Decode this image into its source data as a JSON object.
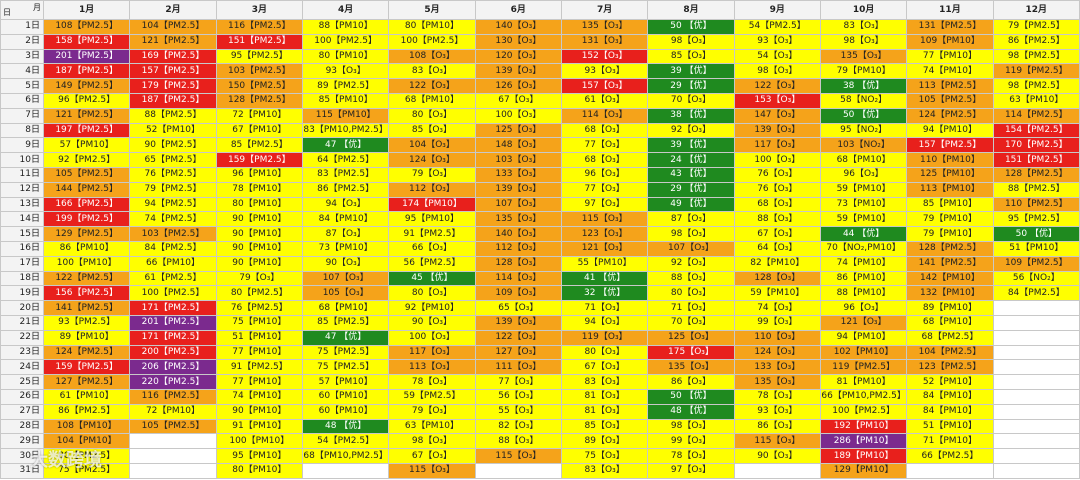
{
  "corner": {
    "col": "月",
    "row": "日"
  },
  "columns": [
    "1月",
    "2月",
    "3月",
    "4月",
    "5月",
    "6月",
    "7月",
    "8月",
    "9月",
    "10月",
    "11月",
    "12月"
  ],
  "rows": [
    {
      "day": "1日",
      "cells": [
        "108【PM2.5】",
        "104【PM2.5】",
        "116【PM2.5】",
        "88【PM10】",
        "80【PM10】",
        "140【O₃】",
        "135【O₃】",
        "50 【优】",
        "54【PM2.5】",
        "83【O₃】",
        "131【PM2.5】",
        "79【PM2.5】"
      ]
    },
    {
      "day": "2日",
      "cells": [
        "158【PM2.5】",
        "121【PM2.5】",
        "151【PM2.5】",
        "100【PM2.5】",
        "100【PM2.5】",
        "130【O₃】",
        "131【O₃】",
        "98【O₃】",
        "93【O₃】",
        "98【O₃】",
        "109【PM10】",
        "86【PM2.5】"
      ]
    },
    {
      "day": "3日",
      "cells": [
        "201【PM2.5】",
        "169【PM2.5】",
        "95【PM2.5】",
        "80【PM10】",
        "108【O₃】",
        "120【O₃】",
        "152【O₃】",
        "85【O₃】",
        "54【O₃】",
        "135【O₃】",
        "77【PM10】",
        "98【PM2.5】"
      ]
    },
    {
      "day": "4日",
      "cells": [
        "187【PM2.5】",
        "157【PM2.5】",
        "103【PM2.5】",
        "93【O₃】",
        "83【O₃】",
        "139【O₃】",
        "93【O₃】",
        "39 【优】",
        "98【O₃】",
        "79【PM10】",
        "74【PM10】",
        "119【PM2.5】"
      ]
    },
    {
      "day": "5日",
      "cells": [
        "149【PM2.5】",
        "179【PM2.5】",
        "150【PM2.5】",
        "89【PM2.5】",
        "122【O₃】",
        "126【O₃】",
        "157【O₃】",
        "29 【优】",
        "122【O₃】",
        "38 【优】",
        "113【PM2.5】",
        "98【PM2.5】"
      ]
    },
    {
      "day": "6日",
      "cells": [
        "96【PM2.5】",
        "187【PM2.5】",
        "128【PM2.5】",
        "85【PM10】",
        "68【PM10】",
        "67【O₃】",
        "61【O₃】",
        "70【O₃】",
        "153【O₃】",
        "58【NO₂】",
        "105【PM2.5】",
        "63【PM10】"
      ]
    },
    {
      "day": "7日",
      "cells": [
        "121【PM2.5】",
        "88【PM2.5】",
        "72【PM10】",
        "115【PM10】",
        "80【O₃】",
        "100【O₃】",
        "114【O₃】",
        "38 【优】",
        "147【O₃】",
        "50 【优】",
        "124【PM2.5】",
        "114【PM2.5】"
      ]
    },
    {
      "day": "8日",
      "cells": [
        "197【PM2.5】",
        "52【PM10】",
        "67【PM10】",
        "83【PM10,PM2.5】",
        "85【O₃】",
        "125【O₃】",
        "68【O₃】",
        "92【O₃】",
        "139【O₃】",
        "95【NO₂】",
        "94【PM10】",
        "154【PM2.5】"
      ]
    },
    {
      "day": "9日",
      "cells": [
        "57【PM10】",
        "90【PM2.5】",
        "85【PM2.5】",
        "47 【优】",
        "104【O₃】",
        "148【O₃】",
        "77【O₃】",
        "39 【优】",
        "117【O₃】",
        "103【NO₂】",
        "157【PM2.5】",
        "170【PM2.5】"
      ]
    },
    {
      "day": "10日",
      "cells": [
        "92【PM2.5】",
        "65【PM2.5】",
        "159【PM2.5】",
        "64【PM2.5】",
        "124【O₃】",
        "103【O₃】",
        "68【O₃】",
        "24 【优】",
        "100【O₃】",
        "68【PM10】",
        "110【PM10】",
        "151【PM2.5】"
      ]
    },
    {
      "day": "11日",
      "cells": [
        "105【PM2.5】",
        "76【PM2.5】",
        "96【PM10】",
        "83【PM2.5】",
        "79【O₃】",
        "133【O₃】",
        "96【O₃】",
        "43 【优】",
        "76【O₃】",
        "96【O₃】",
        "125【PM10】",
        "128【PM2.5】"
      ]
    },
    {
      "day": "12日",
      "cells": [
        "144【PM2.5】",
        "79【PM2.5】",
        "78【PM10】",
        "86【PM2.5】",
        "112【O₃】",
        "139【O₃】",
        "77【O₃】",
        "29 【优】",
        "76【O₃】",
        "59【PM10】",
        "113【PM10】",
        "88【PM2.5】"
      ]
    },
    {
      "day": "13日",
      "cells": [
        "166【PM2.5】",
        "94【PM2.5】",
        "80【PM10】",
        "94【O₃】",
        "174【PM10】",
        "107【O₃】",
        "97【O₃】",
        "49 【优】",
        "68【O₃】",
        "73【PM10】",
        "85【PM10】",
        "110【PM2.5】"
      ]
    },
    {
      "day": "14日",
      "cells": [
        "199【PM2.5】",
        "74【PM2.5】",
        "90【PM10】",
        "84【PM10】",
        "95【PM10】",
        "135【O₃】",
        "115【O₃】",
        "87【O₃】",
        "88【O₃】",
        "59【PM10】",
        "79【PM10】",
        "95【PM2.5】"
      ]
    },
    {
      "day": "15日",
      "cells": [
        "129【PM2.5】",
        "103【PM2.5】",
        "90【PM10】",
        "87【O₃】",
        "91【PM2.5】",
        "140【O₃】",
        "123【O₃】",
        "98【O₃】",
        "67【O₃】",
        "44 【优】",
        "79【PM10】",
        "50 【优】"
      ]
    },
    {
      "day": "16日",
      "cells": [
        "86【PM10】",
        "84【PM2.5】",
        "90【PM10】",
        "73【PM10】",
        "66【O₃】",
        "112【O₃】",
        "121【O₃】",
        "107【O₃】",
        "64【O₃】",
        "70【NO₂,PM10】",
        "128【PM2.5】",
        "51【PM10】"
      ]
    },
    {
      "day": "17日",
      "cells": [
        "100【PM10】",
        "66【PM10】",
        "90【PM10】",
        "90【O₃】",
        "56【PM2.5】",
        "128【O₃】",
        "55【PM10】",
        "92【O₃】",
        "82【PM10】",
        "74【PM10】",
        "141【PM2.5】",
        "109【PM2.5】"
      ]
    },
    {
      "day": "18日",
      "cells": [
        "122【PM2.5】",
        "61【PM2.5】",
        "79【O₃】",
        "107【O₃】",
        "45 【优】",
        "114【O₃】",
        "41 【优】",
        "88【O₃】",
        "128【O₃】",
        "86【PM10】",
        "142【PM10】",
        "56【NO₂】"
      ]
    },
    {
      "day": "19日",
      "cells": [
        "156【PM2.5】",
        "100【PM2.5】",
        "80【PM2.5】",
        "105【O₃】",
        "80【O₃】",
        "109【O₃】",
        "32 【优】",
        "80【O₃】",
        "59【PM10】",
        "88【PM10】",
        "132【PM10】",
        "84【PM2.5】"
      ]
    },
    {
      "day": "20日",
      "cells": [
        "141【PM2.5】",
        "171【PM2.5】",
        "76【PM2.5】",
        "68【PM10】",
        "92【PM10】",
        "65【O₃】",
        "71【O₃】",
        "71【O₃】",
        "74【O₃】",
        "96【O₃】",
        "89【PM10】",
        null
      ]
    },
    {
      "day": "21日",
      "cells": [
        "93【PM2.5】",
        "201【PM2.5】",
        "75【PM10】",
        "85【PM2.5】",
        "90【O₃】",
        "139【O₃】",
        "94【O₃】",
        "70【O₃】",
        "99【O₃】",
        "121【O₃】",
        "68【PM10】",
        null
      ]
    },
    {
      "day": "22日",
      "cells": [
        "89【PM10】",
        "171【PM2.5】",
        "51【PM10】",
        "47 【优】",
        "100【O₃】",
        "122【O₃】",
        "119【O₃】",
        "125【O₃】",
        "110【O₃】",
        "94【PM10】",
        "68【PM2.5】",
        null
      ]
    },
    {
      "day": "23日",
      "cells": [
        "124【PM2.5】",
        "200【PM2.5】",
        "77【PM10】",
        "75【PM2.5】",
        "117【O₃】",
        "127【O₃】",
        "80【O₃】",
        "175【O₃】",
        "124【O₃】",
        "102【PM10】",
        "104【PM2.5】",
        null
      ]
    },
    {
      "day": "24日",
      "cells": [
        "159【PM2.5】",
        "206【PM2.5】",
        "91【PM2.5】",
        "75【PM2.5】",
        "113【O₃】",
        "111【O₃】",
        "67【O₃】",
        "135【O₃】",
        "133【O₃】",
        "119【PM2.5】",
        "123【PM2.5】",
        null
      ]
    },
    {
      "day": "25日",
      "cells": [
        "127【PM2.5】",
        "220【PM2.5】",
        "77【PM10】",
        "57【PM10】",
        "78【O₃】",
        "77【O₃】",
        "83【O₃】",
        "86【O₃】",
        "135【O₃】",
        "81【PM10】",
        "52【PM10】",
        null
      ]
    },
    {
      "day": "26日",
      "cells": [
        "61【PM10】",
        "116【PM2.5】",
        "74【PM10】",
        "60【PM10】",
        "59【PM2.5】",
        "56【O₃】",
        "81【O₃】",
        "50 【优】",
        "78【O₃】",
        "66【PM10,PM2.5】",
        "84【PM10】",
        null
      ]
    },
    {
      "day": "27日",
      "cells": [
        "86【PM2.5】",
        "72【PM10】",
        "90【PM10】",
        "60【PM10】",
        "79【O₃】",
        "55【O₃】",
        "81【O₃】",
        "48 【优】",
        "93【O₃】",
        "100【PM2.5】",
        "84【PM10】",
        null
      ]
    },
    {
      "day": "28日",
      "cells": [
        "108【PM10】",
        "105【PM2.5】",
        "91【PM10】",
        "48 【优】",
        "63【PM10】",
        "82【O₃】",
        "85【O₃】",
        "98【O₃】",
        "86【O₃】",
        "192【PM10】",
        "51【PM10】",
        null
      ]
    },
    {
      "day": "29日",
      "cells": [
        "104【PM10】",
        null,
        "100【PM10】",
        "54【PM2.5】",
        "98【O₃】",
        "88【O₃】",
        "89【O₃】",
        "99【O₃】",
        "115【O₃】",
        "286【PM10】",
        "71【PM10】",
        null
      ]
    },
    {
      "day": "30日",
      "cells": [
        "80【PM2.5】",
        null,
        "95【PM10】",
        "68【PM10,PM2.5】",
        "67【O₃】",
        "115【O₃】",
        "75【O₃】",
        "78【O₃】",
        "90【O₃】",
        "189【PM10】",
        "66【PM2.5】",
        null
      ]
    },
    {
      "day": "31日",
      "cells": [
        "75【PM2.5】",
        null,
        "80【PM10】",
        null,
        "115【O₃】",
        null,
        "83【O₃】",
        "97【O₃】",
        null,
        "129【PM10】",
        null,
        null
      ]
    }
  ],
  "watermark": "大数跨境"
}
